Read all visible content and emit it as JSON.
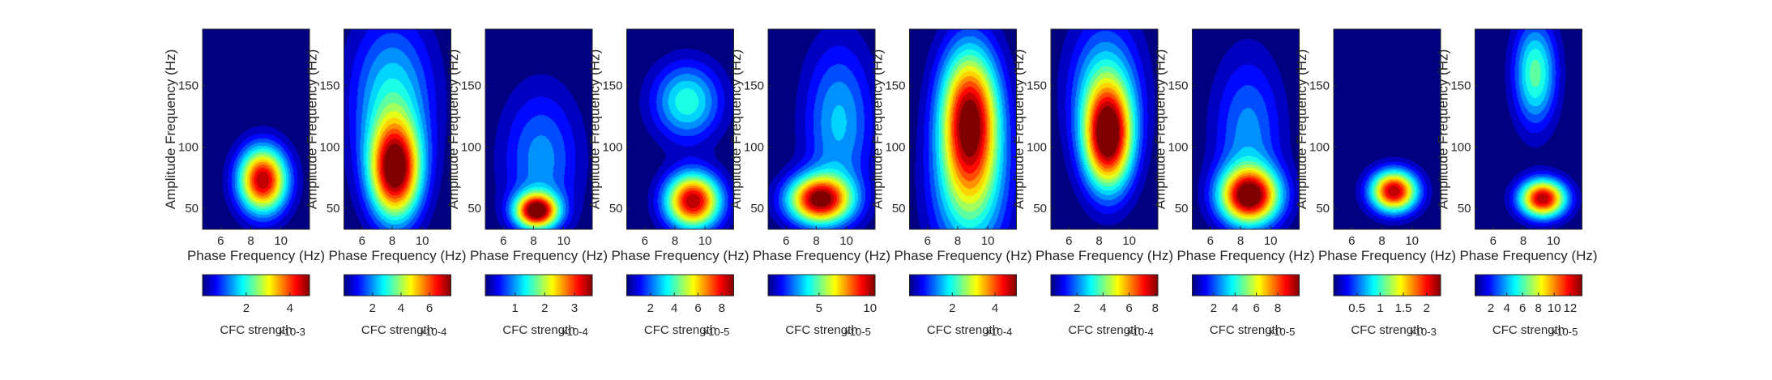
{
  "colors": {
    "background": "#ffffff",
    "axis": "#262626",
    "colormap": "jet"
  },
  "chart_data": [
    {
      "type": "heatmap",
      "xlabel": "Phase Frequency (Hz)",
      "ylabel": "Amplitude Frequency (Hz)",
      "xlim": [
        4.8,
        11.9
      ],
      "ylim": [
        33,
        196
      ],
      "xticks": [
        "6",
        "8",
        "10"
      ],
      "yticks": [
        "50",
        "100",
        "150"
      ],
      "blobs": [
        {
          "x": 8.8,
          "y": 73,
          "sx": 1.15,
          "sy": 19,
          "a": 1.0
        }
      ],
      "colorbar": {
        "label": "CFC strength",
        "exponent": "×10-3",
        "range": [
          0,
          4.9
        ],
        "ticks": [
          "2",
          "4"
        ]
      }
    },
    {
      "type": "heatmap",
      "xlabel": "Phase Frequency (Hz)",
      "ylabel": "Amplitude Frequency (Hz)",
      "xlim": [
        4.8,
        11.9
      ],
      "ylim": [
        33,
        196
      ],
      "yticks": [
        "50",
        "100",
        "150"
      ],
      "xticks": [
        "6",
        "8",
        "10"
      ],
      "blobs": [
        {
          "x": 8.2,
          "y": 80,
          "sx": 1.2,
          "sy": 28,
          "a": 1.0
        },
        {
          "x": 8.0,
          "y": 140,
          "sx": 1.9,
          "sy": 45,
          "a": 0.4
        }
      ],
      "colorbar": {
        "label": "CFC strength",
        "exponent": "×10-4",
        "range": [
          0,
          7.5
        ],
        "ticks": [
          "2",
          "4",
          "6"
        ]
      }
    },
    {
      "type": "heatmap",
      "xlabel": "Phase Frequency (Hz)",
      "ylabel": "Amplitude Frequency (Hz)",
      "xlim": [
        4.8,
        11.9
      ],
      "ylim": [
        33,
        196
      ],
      "yticks": [
        "50",
        "100",
        "150"
      ],
      "xticks": [
        "6",
        "8",
        "10"
      ],
      "blobs": [
        {
          "x": 8.2,
          "y": 48,
          "sx": 1.0,
          "sy": 10,
          "a": 1.0
        },
        {
          "x": 8.5,
          "y": 90,
          "sx": 1.8,
          "sy": 40,
          "a": 0.3
        }
      ],
      "colorbar": {
        "label": "CFC strength",
        "exponent": "×10-4",
        "range": [
          0,
          3.6
        ],
        "ticks": [
          "1",
          "2",
          "3"
        ]
      }
    },
    {
      "type": "heatmap",
      "xlabel": "Phase Frequency (Hz)",
      "ylabel": "Amplitude Frequency (Hz)",
      "xlim": [
        4.8,
        11.9
      ],
      "ylim": [
        33,
        196
      ],
      "yticks": [
        "50",
        "100",
        "150"
      ],
      "xticks": [
        "6",
        "8",
        "10"
      ],
      "blobs": [
        {
          "x": 9.2,
          "y": 56,
          "sx": 1.3,
          "sy": 16,
          "a": 1.0
        },
        {
          "x": 8.8,
          "y": 137,
          "sx": 1.6,
          "sy": 22,
          "a": 0.45
        }
      ],
      "colorbar": {
        "label": "CFC strength",
        "exponent": "×10-5",
        "range": [
          0,
          9
        ],
        "ticks": [
          "2",
          "4",
          "6",
          "8"
        ]
      }
    },
    {
      "type": "heatmap",
      "xlabel": "Phase Frequency (Hz)",
      "ylabel": "Amplitude Frequency (Hz)",
      "xlim": [
        4.8,
        11.9
      ],
      "ylim": [
        33,
        196
      ],
      "yticks": [
        "50",
        "100",
        "150"
      ],
      "xticks": [
        "6",
        "8",
        "10"
      ],
      "blobs": [
        {
          "x": 8.2,
          "y": 57,
          "sx": 1.5,
          "sy": 14,
          "a": 1.0
        },
        {
          "x": 9.5,
          "y": 120,
          "sx": 1.6,
          "sy": 45,
          "a": 0.35
        }
      ],
      "colorbar": {
        "label": "CFC strength",
        "exponent": "×10-5",
        "range": [
          0,
          10.5
        ],
        "ticks": [
          "5",
          "10"
        ]
      }
    },
    {
      "type": "heatmap",
      "xlabel": "Phase Frequency (Hz)",
      "ylabel": "Amplitude Frequency (Hz)",
      "xlim": [
        4.8,
        11.9
      ],
      "ylim": [
        33,
        196
      ],
      "yticks": [
        "50",
        "100",
        "150"
      ],
      "xticks": [
        "6",
        "8",
        "10"
      ],
      "blobs": [
        {
          "x": 8.8,
          "y": 125,
          "sx": 1.4,
          "sy": 40,
          "a": 1.0
        },
        {
          "x": 8.8,
          "y": 60,
          "sx": 1.8,
          "sy": 40,
          "a": 0.4
        }
      ],
      "colorbar": {
        "label": "CFC strength",
        "exponent": "×10-4",
        "range": [
          0,
          5
        ],
        "ticks": [
          "2",
          "4"
        ]
      }
    },
    {
      "type": "heatmap",
      "xlabel": "Phase Frequency (Hz)",
      "ylabel": "Amplitude Frequency (Hz)",
      "xlim": [
        4.8,
        11.9
      ],
      "ylim": [
        33,
        196
      ],
      "yticks": [
        "50",
        "100",
        "150"
      ],
      "xticks": [
        "6",
        "8",
        "10"
      ],
      "blobs": [
        {
          "x": 8.6,
          "y": 107,
          "sx": 1.15,
          "sy": 30,
          "a": 1.0
        },
        {
          "x": 8.4,
          "y": 150,
          "sx": 1.7,
          "sy": 40,
          "a": 0.35
        }
      ],
      "colorbar": {
        "label": "CFC strength",
        "exponent": "×10-4",
        "range": [
          0,
          8.2
        ],
        "ticks": [
          "2",
          "4",
          "6",
          "8"
        ]
      }
    },
    {
      "type": "heatmap",
      "xlabel": "Phase Frequency (Hz)",
      "ylabel": "Amplitude Frequency (Hz)",
      "xlim": [
        4.8,
        11.9
      ],
      "ylim": [
        33,
        196
      ],
      "yticks": [
        "50",
        "100",
        "150"
      ],
      "xticks": [
        "6",
        "8",
        "10"
      ],
      "blobs": [
        {
          "x": 8.6,
          "y": 60,
          "sx": 1.4,
          "sy": 16,
          "a": 1.0
        },
        {
          "x": 8.5,
          "y": 110,
          "sx": 1.6,
          "sy": 45,
          "a": 0.3
        }
      ],
      "colorbar": {
        "label": "CFC strength",
        "exponent": "×10-5",
        "range": [
          0,
          10
        ],
        "ticks": [
          "2",
          "4",
          "6",
          "8"
        ]
      }
    },
    {
      "type": "heatmap",
      "xlabel": "Phase Frequency (Hz)",
      "ylabel": "Amplitude Frequency (Hz)",
      "xlim": [
        4.8,
        11.9
      ],
      "ylim": [
        33,
        196
      ],
      "yticks": [
        "50",
        "100",
        "150"
      ],
      "xticks": [
        "6",
        "8",
        "10"
      ],
      "blobs": [
        {
          "x": 8.8,
          "y": 64,
          "sx": 1.1,
          "sy": 12,
          "a": 1.0
        }
      ],
      "colorbar": {
        "label": "CFC strength",
        "exponent": "×10-3",
        "range": [
          0,
          2.3
        ],
        "ticks": [
          "0.5",
          "1",
          "1.5",
          "2"
        ]
      }
    },
    {
      "type": "heatmap",
      "xlabel": "Phase Frequency (Hz)",
      "ylabel": "Amplitude Frequency (Hz)",
      "xlim": [
        4.8,
        11.9
      ],
      "ylim": [
        33,
        196
      ],
      "yticks": [
        "50",
        "100",
        "150"
      ],
      "xticks": [
        "6",
        "8",
        "10"
      ],
      "blobs": [
        {
          "x": 9.3,
          "y": 58,
          "sx": 1.1,
          "sy": 11,
          "a": 1.0
        },
        {
          "x": 8.8,
          "y": 160,
          "sx": 1.0,
          "sy": 30,
          "a": 0.5
        }
      ],
      "colorbar": {
        "label": "CFC strength",
        "exponent": "×10-5",
        "range": [
          0,
          13.5
        ],
        "ticks": [
          "2",
          "4",
          "6",
          "8",
          "10",
          "12"
        ]
      }
    }
  ]
}
